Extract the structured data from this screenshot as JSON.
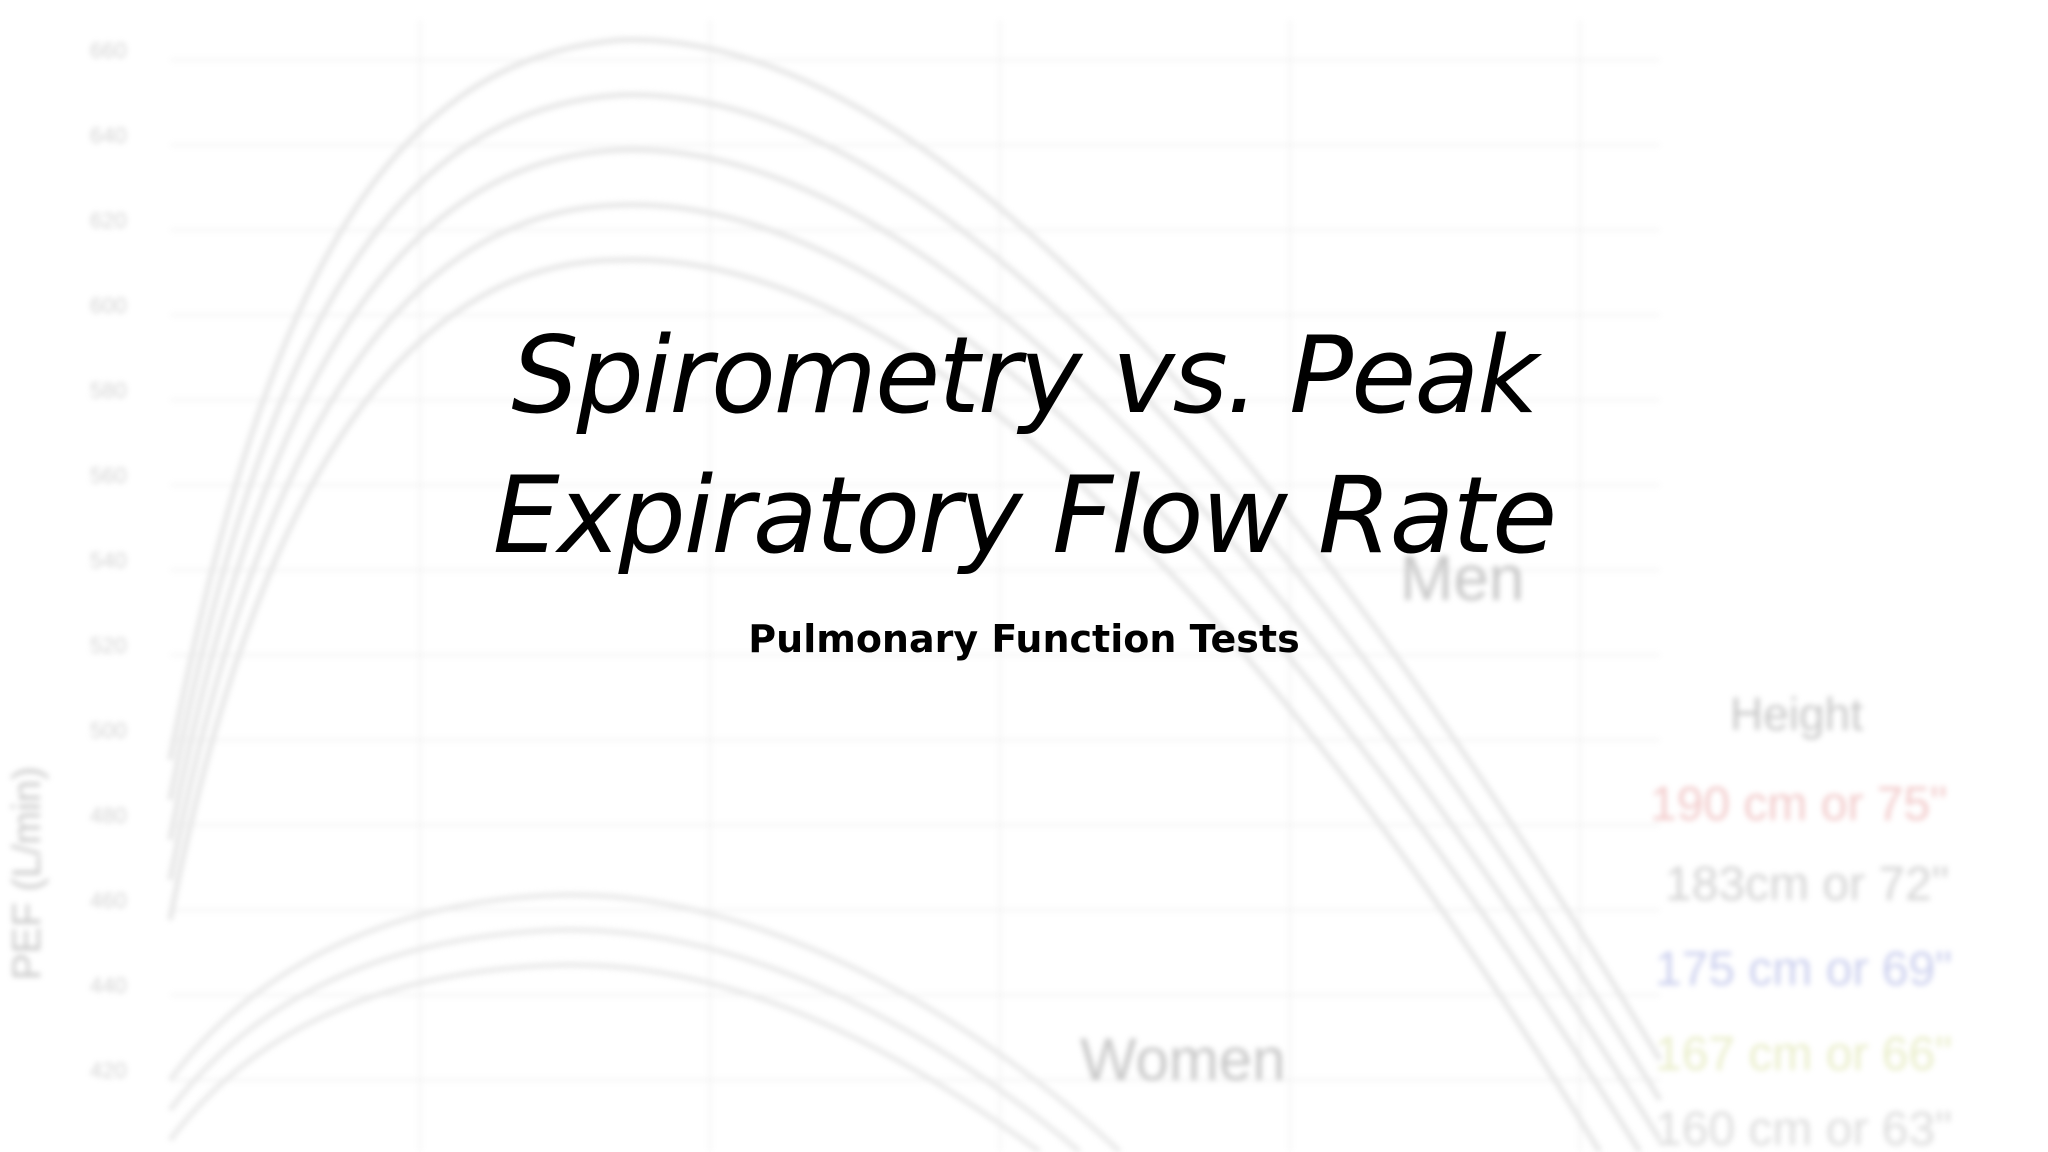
{
  "slide": {
    "title_line1": "Spirometry vs. Peak",
    "title_line2": "Expiratory Flow Rate",
    "subtitle": "Pulmonary Function Tests"
  },
  "background": {
    "description_free": true,
    "man_label": "Men",
    "women_label": "Women",
    "legend_title": "Height",
    "legend_items": [
      {
        "label": "190 cm or 75\"",
        "color": "#e8a0a0"
      },
      {
        "label": "183cm or 72\"",
        "color": "#b0b0b0"
      },
      {
        "label": "175 cm or 69\"",
        "color": "#a0a8e0"
      },
      {
        "label": "167 cm or 66\"",
        "color": "#d8e0a0"
      },
      {
        "label": "160 cm or 63\"",
        "color": "#c0c0c0"
      }
    ],
    "y_ticks": [
      "660",
      "640",
      "620",
      "600",
      "580",
      "560",
      "540",
      "520",
      "500",
      "480",
      "460",
      "440",
      "420"
    ],
    "y_axis_label": "PEF (L/min)"
  }
}
